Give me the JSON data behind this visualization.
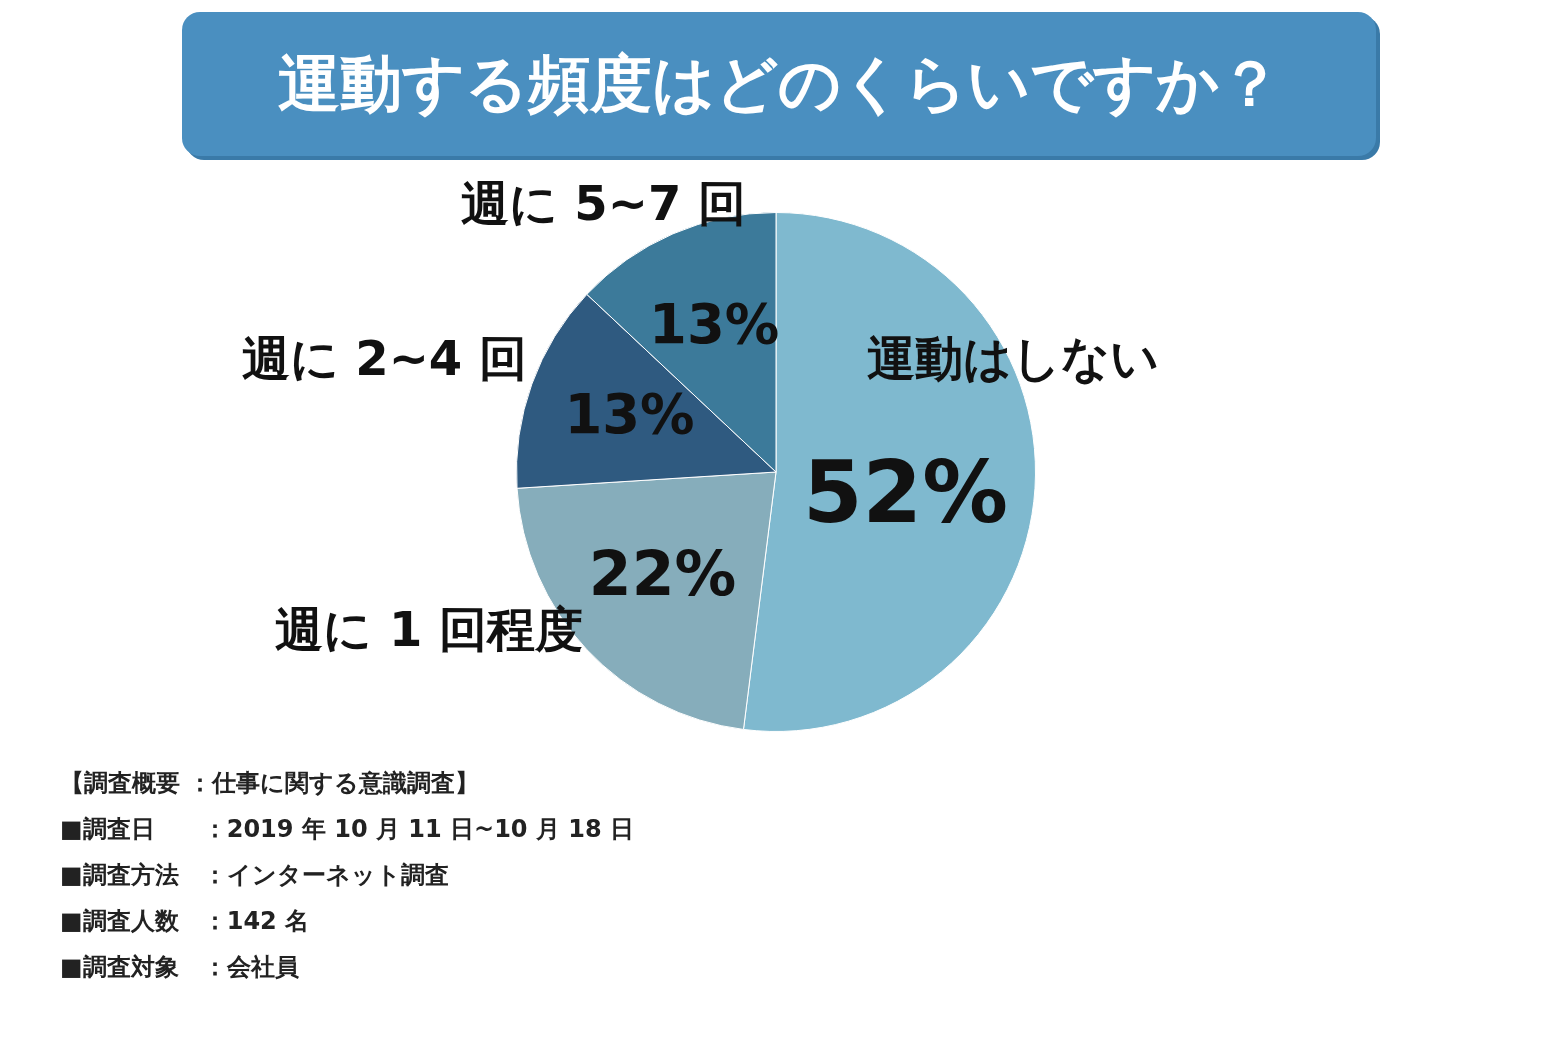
{
  "chart_data": {
    "type": "pie",
    "title": "運動する頻度はどのくらいですか？",
    "categories": [
      "運動はしない",
      "週に 1 回程度",
      "週に 2~4 回",
      "週に 5~7 回"
    ],
    "values": [
      52,
      22,
      13,
      13
    ],
    "colors": [
      "#7fb9cf",
      "#86adbb",
      "#2f5a80",
      "#3c7a9a"
    ],
    "value_labels": [
      "52%",
      "22%",
      "13%",
      "13%"
    ],
    "legend": false,
    "annotations": [
      "【調査概要 ：仕事に関する意識調査】",
      "■調査日　　：2019 年 10 月 11 日~10 月 18 日",
      "■調査方法　：インターネット調査",
      "■調査人数　：142 名",
      "■調査対象　：会社員"
    ]
  }
}
